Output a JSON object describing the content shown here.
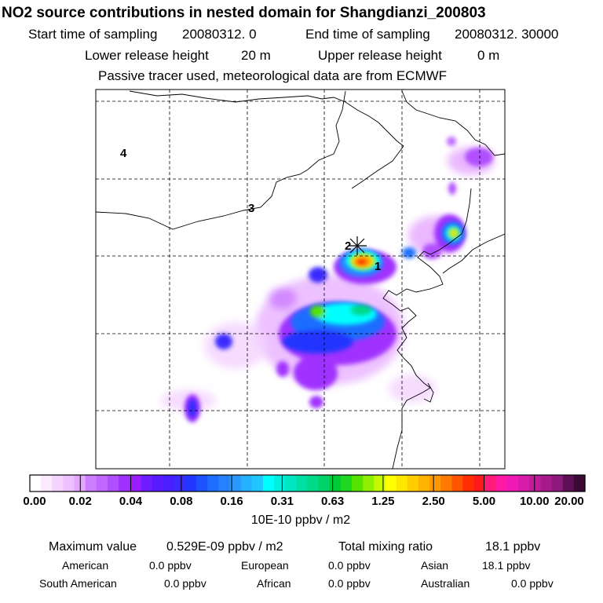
{
  "title": "NO2 source contributions in nested domain for Shangdianzi_200803",
  "sampling": {
    "start_label": "Start time of sampling",
    "start_value": "20080312.     0",
    "end_label": "End time of sampling",
    "end_value": "20080312. 30000"
  },
  "release": {
    "lower_label": "Lower release height",
    "lower_value": "20 m",
    "upper_label": "Upper release height",
    "upper_value": "0 m"
  },
  "note": "Passive tracer used, meteorological data are from ECMWF",
  "chart_data": {
    "type": "heatmap",
    "title": "NO2 source contributions in nested domain for Shangdianzi_200803",
    "colorbar": {
      "ticks": [
        "0.00",
        "0.02",
        "0.04",
        "0.08",
        "0.16",
        "0.31",
        "0.63",
        "1.25",
        "2.50",
        "5.00",
        "10.00",
        "20.00"
      ],
      "unit": "10E-10 ppbv / m2",
      "colors": [
        "#ffffff",
        "#fbe9ff",
        "#f4d3ff",
        "#eec0ff",
        "#e6a6ff",
        "#cc7cff",
        "#c067ff",
        "#b04fff",
        "#a032ff",
        "#9a1cff",
        "#6f1fff",
        "#5a1aff",
        "#4b1eff",
        "#3b2bff",
        "#2236ff",
        "#1e52ff",
        "#1f6dff",
        "#2582ff",
        "#2a98ff",
        "#27b0ff",
        "#1fc6ff",
        "#00ffff",
        "#00f0e0",
        "#00e7c4",
        "#00dfa6",
        "#00d987",
        "#00d26a",
        "#00cc3a",
        "#20d820",
        "#55e400",
        "#8ef000",
        "#c4f800",
        "#ffff00",
        "#ffe600",
        "#ffcd00",
        "#ffb300",
        "#ff9a00",
        "#ff7a00",
        "#ff5500",
        "#ff2d00",
        "#ff1a1a",
        "#ff1c7a",
        "#ff1aa6",
        "#f019b6",
        "#d81ba8",
        "#bf1b9a",
        "#a61a8b",
        "#8c1a7d",
        "#5e0f56",
        "#3a0a35"
      ]
    },
    "station_label": "2",
    "sector_labels": [
      "1",
      "3",
      "4"
    ]
  },
  "stats": {
    "max_label": "Maximum value",
    "max_value": "0.529E-09 ppbv / m2",
    "total_label": "Total mixing ratio",
    "total_value": "18.1 ppbv"
  },
  "regions": {
    "american_label": "American",
    "american_value": "0.0 ppbv",
    "european_label": "European",
    "european_value": "0.0 ppbv",
    "asian_label": "Asian",
    "asian_value": "18.1 ppbv",
    "south_american_label": "South American",
    "south_american_value": "0.0 ppbv",
    "african_label": "African",
    "african_value": "0.0 ppbv",
    "australian_label": "Australian",
    "australian_value": "0.0 ppbv"
  }
}
